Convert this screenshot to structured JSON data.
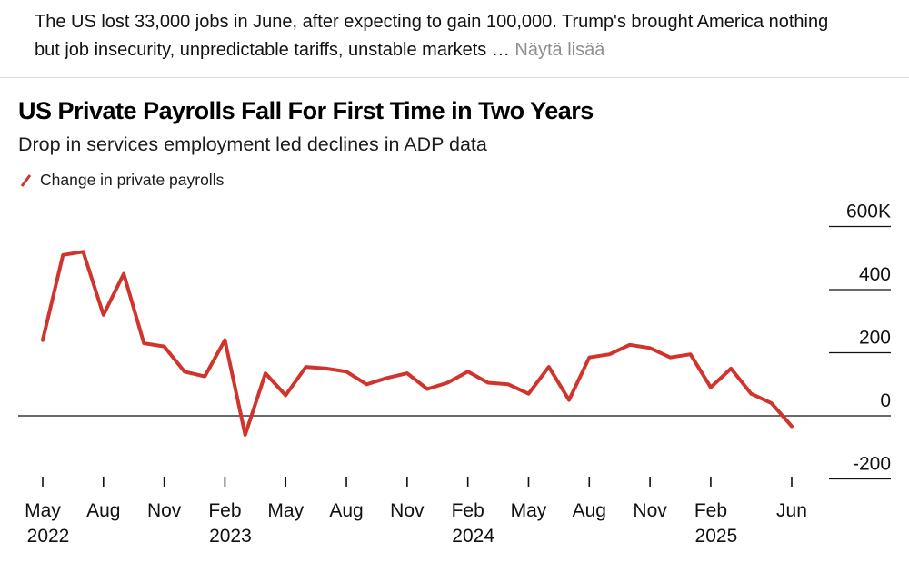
{
  "post": {
    "text": "The US lost 33,000 jobs in June, after expecting to gain 100,000. Trump's brought America nothing but job insecurity, unpredictable tariffs, unstable markets …",
    "show_more": "Näytä lisää"
  },
  "chart_data": {
    "type": "line",
    "title": "US Private Payrolls Fall For First Time in Two Years",
    "subtitle": "Drop in services employment led declines in ADP data",
    "legend": "Change in private payrolls",
    "unit": "thousands of jobs",
    "line_color": "#d0342c",
    "axis_color": "#111111",
    "ylim": [
      -300,
      650
    ],
    "months": [
      "May 2022",
      "Jun 2022",
      "Jul 2022",
      "Aug 2022",
      "Sep 2022",
      "Oct 2022",
      "Nov 2022",
      "Dec 2022",
      "Jan 2023",
      "Feb 2023",
      "Mar 2023",
      "Apr 2023",
      "May 2023",
      "Jun 2023",
      "Jul 2023",
      "Aug 2023",
      "Sep 2023",
      "Oct 2023",
      "Nov 2023",
      "Dec 2023",
      "Jan 2024",
      "Feb 2024",
      "Mar 2024",
      "Apr 2024",
      "May 2024",
      "Jun 2024",
      "Jul 2024",
      "Aug 2024",
      "Sep 2024",
      "Oct 2024",
      "Nov 2024",
      "Dec 2024",
      "Jan 2025",
      "Feb 2025",
      "Mar 2025",
      "Apr 2025",
      "May 2025",
      "Jun 2025"
    ],
    "values": [
      240,
      510,
      520,
      320,
      450,
      230,
      220,
      140,
      125,
      240,
      -60,
      135,
      65,
      155,
      150,
      140,
      100,
      120,
      135,
      85,
      105,
      140,
      105,
      100,
      70,
      155,
      50,
      185,
      195,
      225,
      215,
      185,
      195,
      90,
      150,
      70,
      40,
      -33
    ],
    "y_ticks": [
      {
        "label": "600K",
        "value": 600
      },
      {
        "label": "400",
        "value": 400
      },
      {
        "label": "200",
        "value": 200
      },
      {
        "label": "0",
        "value": 0
      },
      {
        "label": "-200",
        "value": -200
      }
    ],
    "x_ticks": [
      {
        "index": 0,
        "label": "May",
        "year": "2022"
      },
      {
        "index": 3,
        "label": "Aug"
      },
      {
        "index": 6,
        "label": "Nov"
      },
      {
        "index": 9,
        "label": "Feb",
        "year": "2023"
      },
      {
        "index": 12,
        "label": "May"
      },
      {
        "index": 15,
        "label": "Aug"
      },
      {
        "index": 18,
        "label": "Nov"
      },
      {
        "index": 21,
        "label": "Feb",
        "year": "2024"
      },
      {
        "index": 24,
        "label": "May"
      },
      {
        "index": 27,
        "label": "Aug"
      },
      {
        "index": 30,
        "label": "Nov"
      },
      {
        "index": 33,
        "label": "Feb",
        "year": "2025"
      },
      {
        "index": 37,
        "label": "Jun"
      }
    ]
  }
}
